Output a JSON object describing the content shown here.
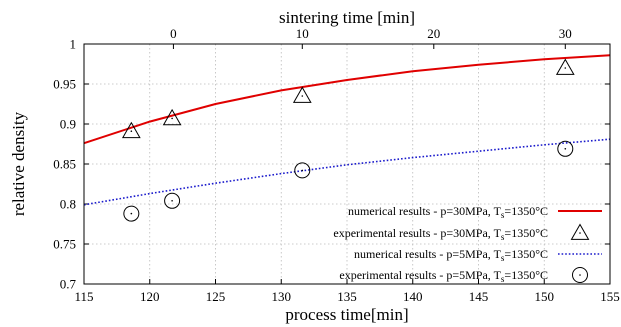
{
  "chart_data": {
    "type": "line",
    "xlabel": "process time[min]",
    "ylabel": "relative density",
    "x2label": "sintering time [min]",
    "xlim": [
      115,
      155
    ],
    "ylim": [
      0.7,
      1.0
    ],
    "x_ticks": [
      115,
      120,
      125,
      130,
      135,
      140,
      145,
      150,
      155
    ],
    "y_ticks": [
      0.7,
      0.75,
      0.8,
      0.85,
      0.9,
      0.95,
      1.0
    ],
    "x_tick_labels": [
      "115",
      "120",
      "125",
      "130",
      "135",
      "140",
      "145",
      "150",
      "155"
    ],
    "y_tick_labels": [
      "0.7",
      "0.75",
      "0.8",
      "0.85",
      "0.9",
      "0.95",
      "1"
    ],
    "x2_ticks": [
      121.8,
      131.6,
      141.6,
      151.6
    ],
    "x2_tick_labels": [
      "0",
      "10",
      "20",
      "30"
    ],
    "grid": true,
    "legend_position": "bottom-right",
    "series": [
      {
        "name": "numerical results - p=30MPa, T",
        "name_sub": "s",
        "name_suffix": "=1350°C",
        "style": "line",
        "color": "#e00000",
        "x": [
          115,
          120,
          125,
          130,
          135,
          140,
          145,
          150,
          155
        ],
        "y": [
          0.876,
          0.903,
          0.925,
          0.942,
          0.955,
          0.966,
          0.974,
          0.981,
          0.986
        ]
      },
      {
        "name": "experimental results - p=30MPa, T",
        "name_sub": "s",
        "name_suffix": "=1350°C",
        "style": "triangle",
        "color": "#000000",
        "x": [
          118.6,
          121.7,
          131.6,
          151.6
        ],
        "y": [
          0.891,
          0.907,
          0.935,
          0.97
        ]
      },
      {
        "name": "numerical results - p=5MPa, T",
        "name_sub": "s",
        "name_suffix": "=1350°C",
        "style": "dotted",
        "color": "#1a1acc",
        "x": [
          115,
          120,
          125,
          130,
          135,
          140,
          145,
          150,
          155
        ],
        "y": [
          0.799,
          0.813,
          0.826,
          0.838,
          0.849,
          0.858,
          0.866,
          0.874,
          0.881
        ]
      },
      {
        "name": "experimental results - p=5MPa, T",
        "name_sub": "s",
        "name_suffix": "=1350°C",
        "style": "circle",
        "color": "#000000",
        "x": [
          118.6,
          121.7,
          131.6,
          151.6
        ],
        "y": [
          0.788,
          0.804,
          0.842,
          0.869
        ]
      }
    ]
  }
}
